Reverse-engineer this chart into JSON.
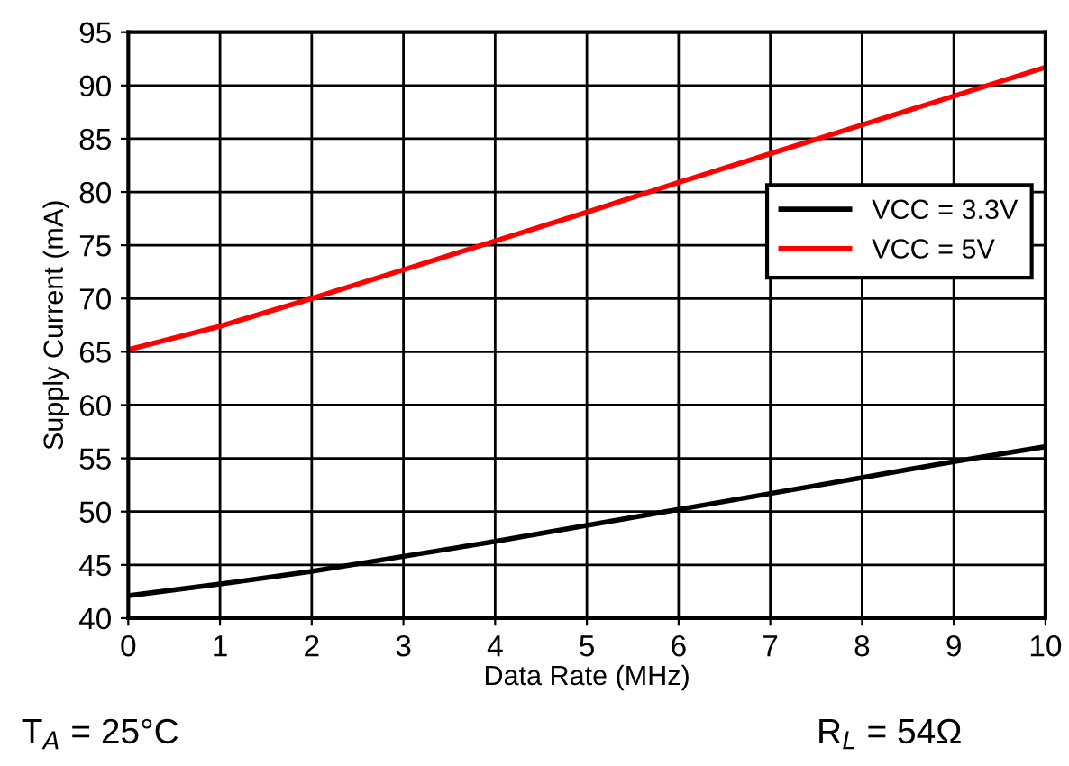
{
  "chart_data": {
    "type": "line",
    "xlabel": "Data Rate (MHz)",
    "ylabel": "Supply Current (mA)",
    "x": [
      0,
      1,
      2,
      3,
      4,
      5,
      6,
      7,
      8,
      9,
      10
    ],
    "series": [
      {
        "name": "VCC = 3.3V",
        "color": "#000000",
        "values": [
          42.1,
          43.2,
          44.4,
          45.8,
          47.2,
          48.7,
          50.2,
          51.7,
          53.2,
          54.7,
          56.1
        ]
      },
      {
        "name": "VCC = 5V",
        "color": "#ff0000",
        "values": [
          65.2,
          67.4,
          70.0,
          72.7,
          75.4,
          78.1,
          80.9,
          83.6,
          86.3,
          89.0,
          91.7
        ]
      }
    ],
    "xlim": [
      0,
      10
    ],
    "xticks": [
      0,
      1,
      2,
      3,
      4,
      5,
      6,
      7,
      8,
      9,
      10
    ],
    "ylim": [
      40,
      95
    ],
    "yticks": [
      40,
      45,
      50,
      55,
      60,
      65,
      70,
      75,
      80,
      85,
      90,
      95
    ],
    "grid": true,
    "legend": "right",
    "marker": "none",
    "line_style": "solid",
    "annotations": [
      "T$_{A}$ = 25°C",
      "R$_{L}$ = 54Ω"
    ]
  }
}
